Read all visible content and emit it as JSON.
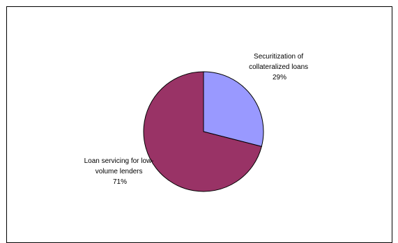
{
  "chart_data": {
    "type": "pie",
    "title": "",
    "slices": [
      {
        "label_lines": [
          "Securitization of",
          "collateralized loans"
        ],
        "value_label": "29%",
        "value": 29,
        "color": "#9999ff"
      },
      {
        "label_lines": [
          "Loan servicing for low-",
          "volume lenders"
        ],
        "value_label": "71%",
        "value": 71,
        "color": "#993366"
      }
    ]
  }
}
